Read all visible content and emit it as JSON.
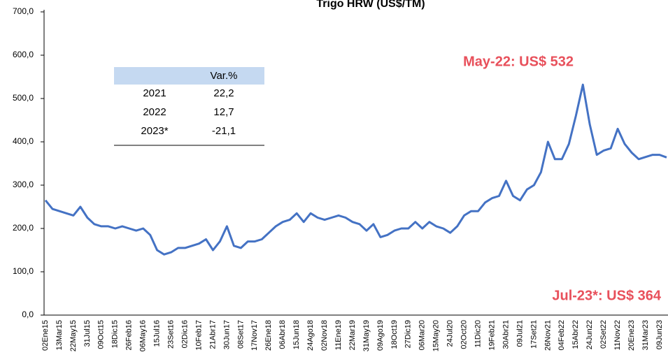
{
  "chart_data": {
    "type": "line",
    "title": "Trigo HRW (US$/TM)",
    "categories": [
      "02Ene15",
      null,
      "13Mar15",
      null,
      "22May15",
      null,
      "31Jul15",
      null,
      "09Oct15",
      null,
      "18Dic15",
      null,
      "26Feb16",
      null,
      "06May16",
      null,
      "15Jul16",
      null,
      "23Set16",
      null,
      "02Dic16",
      null,
      "10Feb17",
      null,
      "21Abr17",
      null,
      "30Jun17",
      null,
      "08Set17",
      null,
      "17Nov17",
      null,
      "26Ene18",
      null,
      "06Abr18",
      null,
      "15Jun18",
      null,
      "24Ago18",
      null,
      "02Nov18",
      null,
      "11Ene19",
      null,
      "22Mar19",
      null,
      "31May19",
      null,
      "09Ago19",
      null,
      "18Oct19",
      null,
      "27Dic19",
      null,
      "06Mar20",
      null,
      "15May20",
      null,
      "24Jul20",
      null,
      "02Oct20",
      null,
      "11Dic20",
      null,
      "19Feb21",
      null,
      "30Abr21",
      null,
      "09Jul21",
      null,
      "17Set21",
      null,
      "26Nov21",
      null,
      "04Feb22",
      null,
      "15Abr22",
      null,
      "24Jun22",
      null,
      "02Set22",
      null,
      "11Nov22",
      null,
      "20Ene23",
      null,
      "31Mar23",
      null,
      "09Jun23",
      null
    ],
    "series": [
      {
        "name": "Trigo HRW",
        "color": "#4472c4",
        "values": [
          265,
          245,
          240,
          235,
          230,
          250,
          225,
          210,
          205,
          205,
          200,
          205,
          200,
          195,
          200,
          185,
          150,
          140,
          145,
          155,
          155,
          160,
          165,
          175,
          150,
          170,
          205,
          160,
          155,
          170,
          170,
          175,
          190,
          205,
          215,
          220,
          235,
          215,
          235,
          225,
          220,
          225,
          230,
          225,
          215,
          210,
          195,
          210,
          180,
          185,
          195,
          200,
          200,
          215,
          200,
          215,
          205,
          200,
          190,
          205,
          230,
          240,
          240,
          260,
          270,
          275,
          310,
          275,
          265,
          290,
          300,
          330,
          400,
          360,
          360,
          395,
          460,
          532,
          440,
          370,
          380,
          385,
          430,
          395,
          375,
          360,
          365,
          370,
          370,
          364
        ]
      }
    ],
    "ylim": [
      0,
      700
    ],
    "yticks": [
      {
        "value": 0,
        "label": "0,0"
      },
      {
        "value": 100,
        "label": "100,0"
      },
      {
        "value": 200,
        "label": "200,0"
      },
      {
        "value": 300,
        "label": "300,0"
      },
      {
        "value": 400,
        "label": "400,0"
      },
      {
        "value": 500,
        "label": "500,0"
      },
      {
        "value": 600,
        "label": "600,0"
      },
      {
        "value": 700,
        "label": "700,0"
      }
    ],
    "annotations": [
      "May-22: US$ 532",
      "Jul-23*: US$ 364"
    ]
  },
  "table": {
    "header": "Var.%",
    "rows": [
      [
        "2021",
        "22,2"
      ],
      [
        "2022",
        "12,7"
      ],
      [
        "2023*",
        "-21,1"
      ]
    ]
  }
}
